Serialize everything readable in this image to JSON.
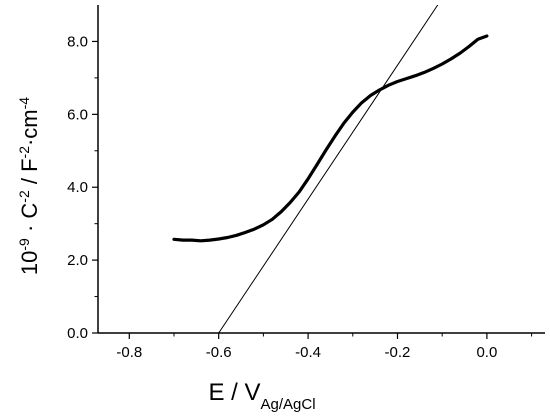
{
  "chart_data": {
    "type": "line",
    "title": "",
    "xlabel": {
      "main": "E / V",
      "subscript": "Ag/AgCl"
    },
    "ylabel": {
      "parts": [
        {
          "text": "10",
          "sup": "-9"
        },
        {
          "text": " · C",
          "sup": "-2"
        },
        {
          "text": " / F",
          "sup": "-2"
        },
        {
          "text": "·cm",
          "sup": "-4"
        }
      ]
    },
    "xlim": [
      -0.87,
      0.13
    ],
    "ylim": [
      0.0,
      9.0
    ],
    "x_ticks": [
      {
        "value": -0.8,
        "label": "-0.8"
      },
      {
        "value": -0.6,
        "label": "-0.6"
      },
      {
        "value": -0.4,
        "label": "-0.4"
      },
      {
        "value": -0.2,
        "label": "-0.2"
      },
      {
        "value": 0.0,
        "label": "0.0"
      }
    ],
    "y_ticks": [
      {
        "value": 0.0,
        "label": "0.0"
      },
      {
        "value": 2.0,
        "label": "2.0"
      },
      {
        "value": 4.0,
        "label": "4.0"
      },
      {
        "value": 6.0,
        "label": "6.0"
      },
      {
        "value": 8.0,
        "label": "8.0"
      }
    ],
    "grid": false,
    "legend": "none",
    "series": [
      {
        "style": "thick",
        "color": "#000000",
        "x": [
          -0.7,
          -0.68,
          -0.66,
          -0.64,
          -0.62,
          -0.6,
          -0.58,
          -0.56,
          -0.54,
          -0.52,
          -0.5,
          -0.48,
          -0.46,
          -0.44,
          -0.42,
          -0.4,
          -0.38,
          -0.36,
          -0.34,
          -0.32,
          -0.3,
          -0.28,
          -0.26,
          -0.24,
          -0.22,
          -0.2,
          -0.18,
          -0.16,
          -0.14,
          -0.12,
          -0.1,
          -0.08,
          -0.06,
          -0.04,
          -0.02,
          0.0
        ],
        "y": [
          2.57,
          2.55,
          2.55,
          2.53,
          2.55,
          2.58,
          2.62,
          2.68,
          2.76,
          2.85,
          2.97,
          3.12,
          3.33,
          3.58,
          3.87,
          4.23,
          4.62,
          5.02,
          5.4,
          5.76,
          6.06,
          6.32,
          6.52,
          6.67,
          6.8,
          6.9,
          6.98,
          7.06,
          7.15,
          7.26,
          7.38,
          7.52,
          7.68,
          7.86,
          8.06,
          8.15
        ]
      },
      {
        "style": "thin",
        "color": "#000000",
        "x": [
          -0.6,
          -0.11
        ],
        "y": [
          0.0,
          9.0
        ]
      }
    ]
  }
}
